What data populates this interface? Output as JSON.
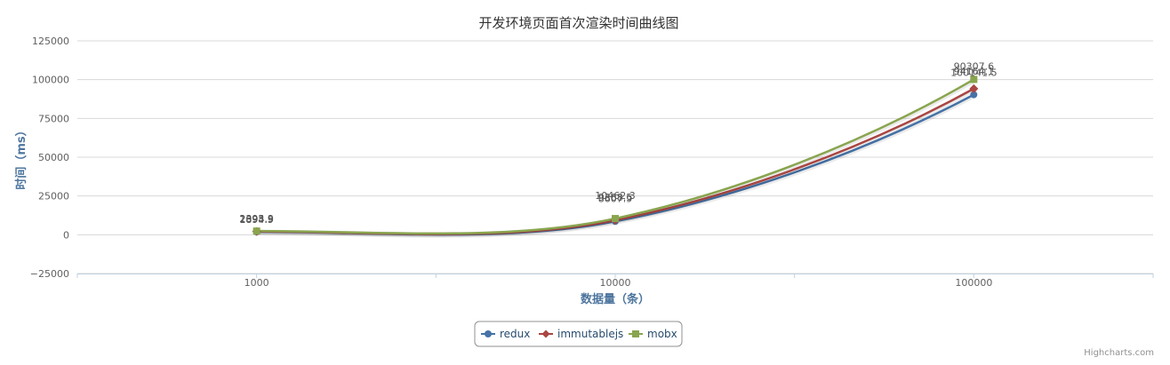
{
  "credit": "Highcharts.com",
  "chart_data": {
    "type": "line",
    "title": "开发环境页面首次渲染时间曲线图",
    "xlabel": "数据量（条）",
    "ylabel": "时间（ms）",
    "x_scale": "log",
    "categories": [
      "1000",
      "10000",
      "100000"
    ],
    "x": [
      1000,
      10000,
      100000
    ],
    "yticks": [
      "125000",
      "100000",
      "75000",
      "50000",
      "25000",
      "0",
      "−25000"
    ],
    "ylim": [
      -25000,
      125000
    ],
    "grid": true,
    "legend_position": "bottom-center",
    "series": [
      {
        "name": "redux",
        "color": "#4572A7",
        "marker": "circle",
        "values": [
          1894.9,
          8607.9,
          90307.6
        ],
        "labels": [
          "1894.9",
          "8607.9",
          "90307.6"
        ]
      },
      {
        "name": "immutablejs",
        "color": "#AA4643",
        "marker": "diamond",
        "values": [
          2093.5,
          9368.5,
          94164.1
        ],
        "labels": [
          "2093.5",
          "9368.5",
          "94164.1"
        ]
      },
      {
        "name": "mobx",
        "color": "#89A54E",
        "marker": "square",
        "values": [
          2395.9,
          10462.3,
          100141.5
        ],
        "labels": [
          "2395.9",
          "10462.3",
          "100141.5"
        ]
      }
    ]
  }
}
